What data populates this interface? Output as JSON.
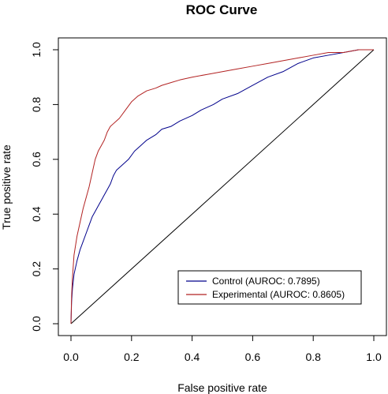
{
  "chart_data": {
    "type": "line",
    "title": "ROC Curve",
    "xlabel": "False positive rate",
    "ylabel": "True positive rate",
    "xlim": [
      0,
      1
    ],
    "ylim": [
      0,
      1
    ],
    "xticks": [
      0,
      0.2,
      0.4,
      0.6,
      0.8,
      1
    ],
    "xtick_labels": [
      "0.0",
      "0.2",
      "0.4",
      "0.6",
      "0.8",
      "1.0"
    ],
    "yticks": [
      0,
      0.2,
      0.4,
      0.6,
      0.8,
      1
    ],
    "ytick_labels": [
      "0.0",
      "0.2",
      "0.4",
      "0.6",
      "0.8",
      "1.0"
    ],
    "grid": false,
    "legend_position": "bottom-right",
    "series": [
      {
        "name": "Control (AUROC: 0.7895)",
        "color": "#00008b",
        "x": [
          0,
          0.002,
          0.005,
          0.01,
          0.02,
          0.03,
          0.04,
          0.05,
          0.06,
          0.07,
          0.08,
          0.09,
          0.1,
          0.11,
          0.12,
          0.13,
          0.14,
          0.15,
          0.17,
          0.19,
          0.21,
          0.23,
          0.25,
          0.28,
          0.3,
          0.33,
          0.36,
          0.4,
          0.43,
          0.47,
          0.5,
          0.55,
          0.6,
          0.65,
          0.7,
          0.75,
          0.8,
          0.85,
          0.9,
          0.95,
          1.0
        ],
        "y": [
          0,
          0.08,
          0.13,
          0.18,
          0.23,
          0.27,
          0.3,
          0.33,
          0.36,
          0.39,
          0.41,
          0.43,
          0.45,
          0.47,
          0.49,
          0.51,
          0.54,
          0.56,
          0.58,
          0.6,
          0.63,
          0.65,
          0.67,
          0.69,
          0.71,
          0.72,
          0.74,
          0.76,
          0.78,
          0.8,
          0.82,
          0.84,
          0.87,
          0.9,
          0.92,
          0.95,
          0.97,
          0.98,
          0.99,
          1.0,
          1.0
        ]
      },
      {
        "name": "Experimental (AUROC: 0.8605)",
        "color": "#b22222",
        "x": [
          0,
          0.002,
          0.005,
          0.01,
          0.02,
          0.03,
          0.04,
          0.05,
          0.06,
          0.07,
          0.08,
          0.09,
          0.1,
          0.11,
          0.12,
          0.13,
          0.14,
          0.15,
          0.16,
          0.18,
          0.2,
          0.22,
          0.25,
          0.28,
          0.3,
          0.33,
          0.36,
          0.4,
          0.45,
          0.5,
          0.55,
          0.6,
          0.65,
          0.7,
          0.75,
          0.8,
          0.85,
          0.9,
          0.95,
          1.0
        ],
        "y": [
          0,
          0.1,
          0.17,
          0.25,
          0.32,
          0.37,
          0.42,
          0.46,
          0.5,
          0.55,
          0.6,
          0.63,
          0.65,
          0.67,
          0.7,
          0.72,
          0.73,
          0.74,
          0.75,
          0.78,
          0.81,
          0.83,
          0.85,
          0.86,
          0.87,
          0.88,
          0.89,
          0.9,
          0.91,
          0.92,
          0.93,
          0.94,
          0.95,
          0.96,
          0.97,
          0.98,
          0.99,
          0.99,
          1.0,
          1.0
        ]
      },
      {
        "name": "",
        "color": "#000000",
        "x": [
          0,
          1
        ],
        "y": [
          0,
          1
        ]
      }
    ]
  }
}
